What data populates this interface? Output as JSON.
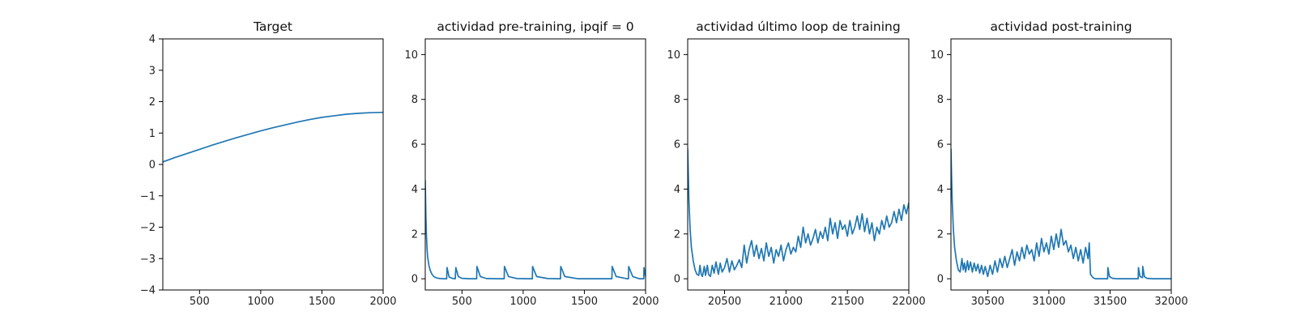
{
  "chart_data": [
    {
      "type": "line",
      "title": "Target",
      "xlim": [
        200,
        2000
      ],
      "ylim": [
        -4,
        4
      ],
      "xticks": [
        500,
        1000,
        1500,
        2000
      ],
      "yticks": [
        -4,
        -3,
        -2,
        -1,
        0,
        1,
        2,
        3,
        4
      ],
      "xticklabels": [
        "500",
        "1000",
        "1500",
        "2000"
      ],
      "yticklabels": [
        "−4",
        "−3",
        "−2",
        "−1",
        "0",
        "1",
        "2",
        "3",
        "4"
      ],
      "line_color": "#1f77b4",
      "series": [
        {
          "x": [
            200,
            300,
            400,
            500,
            600,
            700,
            800,
            900,
            1000,
            1100,
            1200,
            1300,
            1400,
            1500,
            1600,
            1700,
            1800,
            1900,
            2000
          ],
          "y": [
            0.08,
            0.22,
            0.35,
            0.48,
            0.61,
            0.73,
            0.85,
            0.96,
            1.07,
            1.17,
            1.26,
            1.35,
            1.43,
            1.5,
            1.55,
            1.6,
            1.63,
            1.65,
            1.66
          ]
        }
      ]
    },
    {
      "type": "line",
      "title": "actividad pre-training, ipqif = 0",
      "xlim": [
        200,
        2000
      ],
      "ylim": [
        -0.5,
        10.7
      ],
      "xticks": [
        500,
        1000,
        1500,
        2000
      ],
      "yticks": [
        0,
        2,
        4,
        6,
        8,
        10
      ],
      "xticklabels": [
        "500",
        "1000",
        "1500",
        "2000"
      ],
      "yticklabels": [
        "0",
        "2",
        "4",
        "6",
        "8",
        "10"
      ],
      "line_color": "#1f77b4",
      "series": [
        {
          "x": [
            200,
            205,
            210,
            215,
            220,
            230,
            240,
            255,
            270,
            290,
            320,
            360,
            375,
            378,
            395,
            420,
            445,
            450,
            470,
            500,
            560,
            620,
            622,
            650,
            700,
            800,
            845,
            847,
            880,
            950,
            1050,
            1075,
            1077,
            1110,
            1200,
            1290,
            1305,
            1307,
            1340,
            1450,
            1600,
            1720,
            1725,
            1727,
            1760,
            1850,
            1860,
            1862,
            1895,
            1950,
            1985,
            1987,
            2000
          ],
          "y": [
            4.4,
            2.8,
            1.9,
            1.3,
            0.95,
            0.6,
            0.38,
            0.2,
            0.1,
            0.04,
            0.01,
            0.0,
            0.0,
            0.5,
            0.08,
            0.02,
            0.0,
            0.5,
            0.1,
            0.02,
            0.0,
            0.0,
            0.55,
            0.1,
            0.01,
            0.0,
            0.0,
            0.55,
            0.1,
            0.01,
            0.0,
            0.0,
            0.55,
            0.1,
            0.01,
            0.0,
            0.0,
            0.55,
            0.1,
            0.0,
            0.0,
            0.0,
            0.0,
            0.55,
            0.1,
            0.0,
            0.0,
            0.55,
            0.1,
            0.0,
            0.0,
            0.5,
            0.1
          ]
        }
      ]
    },
    {
      "type": "line",
      "title": "actividad último loop de training",
      "xlim": [
        20200,
        22000
      ],
      "ylim": [
        -0.5,
        10.7
      ],
      "xticks": [
        20500,
        21000,
        21500,
        22000
      ],
      "yticks": [
        0,
        2,
        4,
        6,
        8,
        10
      ],
      "xticklabels": [
        "20500",
        "21000",
        "21500",
        "22000"
      ],
      "yticklabels": [
        "0",
        "2",
        "4",
        "6",
        "8",
        "10"
      ],
      "line_color": "#1f77b4",
      "series": [
        {
          "x": [
            20200,
            20210,
            20220,
            20230,
            20245,
            20260,
            20275,
            20290,
            20300,
            20310,
            20320,
            20335,
            20345,
            20360,
            20370,
            20385,
            20400,
            20415,
            20430,
            20450,
            20465,
            20480,
            20500,
            20520,
            20540,
            20560,
            20580,
            20600,
            20620,
            20640,
            20660,
            20680,
            20700,
            20720,
            20740,
            20760,
            20780,
            20800,
            20820,
            20840,
            20860,
            20880,
            20900,
            20920,
            20940,
            20960,
            20980,
            21000,
            21020,
            21040,
            21060,
            21080,
            21100,
            21120,
            21140,
            21160,
            21180,
            21200,
            21220,
            21240,
            21260,
            21280,
            21300,
            21320,
            21340,
            21360,
            21380,
            21400,
            21420,
            21440,
            21460,
            21480,
            21500,
            21520,
            21540,
            21560,
            21580,
            21600,
            21620,
            21640,
            21660,
            21680,
            21700,
            21720,
            21740,
            21760,
            21780,
            21800,
            21820,
            21840,
            21860,
            21880,
            21900,
            21920,
            21940,
            21960,
            21980,
            22000
          ],
          "y": [
            5.8,
            3.5,
            2.2,
            1.4,
            0.8,
            0.4,
            0.2,
            0.15,
            0.6,
            0.2,
            0.1,
            0.55,
            0.15,
            0.6,
            0.2,
            0.1,
            0.6,
            0.25,
            0.75,
            0.2,
            0.7,
            0.3,
            0.5,
            0.9,
            0.3,
            0.8,
            0.4,
            0.6,
            0.85,
            0.5,
            1.5,
            0.7,
            1.3,
            1.7,
            1.0,
            1.5,
            0.9,
            1.35,
            0.8,
            1.6,
            1.0,
            1.4,
            0.7,
            1.3,
            1.0,
            1.5,
            0.8,
            1.3,
            1.6,
            1.1,
            1.4,
            1.2,
            1.9,
            1.4,
            2.3,
            1.6,
            2.0,
            1.5,
            1.8,
            2.2,
            1.6,
            2.1,
            1.8,
            2.3,
            1.7,
            2.7,
            2.0,
            2.5,
            1.8,
            2.6,
            2.2,
            2.4,
            1.9,
            2.6,
            2.0,
            2.3,
            2.8,
            2.2,
            2.9,
            2.1,
            2.7,
            2.0,
            2.5,
            1.7,
            2.3,
            2.0,
            2.6,
            2.2,
            2.8,
            2.3,
            2.5,
            3.0,
            2.5,
            3.1,
            2.6,
            3.3,
            2.9,
            3.4
          ]
        }
      ]
    },
    {
      "type": "line",
      "title": "actividad post-training",
      "xlim": [
        30200,
        32000
      ],
      "ylim": [
        -0.5,
        10.7
      ],
      "xticks": [
        30500,
        31000,
        31500,
        32000
      ],
      "yticks": [
        0,
        2,
        4,
        6,
        8,
        10
      ],
      "xticklabels": [
        "30500",
        "31000",
        "31500",
        "32000"
      ],
      "yticklabels": [
        "0",
        "2",
        "4",
        "6",
        "8",
        "10"
      ],
      "line_color": "#1f77b4",
      "series": [
        {
          "x": [
            30200,
            30210,
            30220,
            30230,
            30245,
            30260,
            30275,
            30290,
            30300,
            30310,
            30320,
            30335,
            30345,
            30360,
            30375,
            30390,
            30405,
            30420,
            30435,
            30450,
            30465,
            30480,
            30500,
            30520,
            30540,
            30560,
            30580,
            30600,
            30620,
            30640,
            30660,
            30680,
            30700,
            30720,
            30740,
            30760,
            30780,
            30800,
            30820,
            30840,
            30860,
            30880,
            30900,
            30920,
            30940,
            30960,
            30980,
            31000,
            31020,
            31040,
            31060,
            31080,
            31100,
            31120,
            31140,
            31160,
            31180,
            31200,
            31220,
            31240,
            31260,
            31280,
            31300,
            31320,
            31330,
            31340,
            31360,
            31380,
            31400,
            31450,
            31480,
            31482,
            31495,
            31520,
            31560,
            31600,
            31700,
            31730,
            31732,
            31745,
            31765,
            31767,
            31780,
            31800,
            31850,
            31900,
            31950,
            32000
          ],
          "y": [
            5.8,
            3.5,
            2.2,
            1.4,
            0.8,
            0.4,
            0.3,
            0.9,
            0.4,
            0.7,
            0.3,
            0.8,
            0.4,
            0.75,
            0.3,
            0.7,
            0.35,
            0.65,
            0.25,
            0.6,
            0.2,
            0.55,
            0.1,
            0.6,
            0.2,
            0.8,
            0.3,
            0.9,
            0.5,
            1.0,
            0.5,
            0.9,
            1.3,
            0.6,
            1.2,
            0.8,
            1.4,
            0.9,
            1.5,
            1.1,
            1.3,
            0.8,
            1.6,
            1.0,
            1.8,
            1.2,
            1.6,
            1.1,
            1.9,
            1.3,
            2.0,
            1.4,
            2.2,
            1.5,
            1.7,
            1.2,
            1.5,
            0.9,
            1.4,
            0.8,
            1.3,
            0.7,
            1.4,
            0.9,
            1.6,
            0.2,
            0.05,
            0.0,
            0.0,
            0.0,
            0.0,
            0.5,
            0.1,
            0.02,
            0.0,
            0.0,
            0.0,
            0.0,
            0.5,
            0.1,
            0.05,
            0.55,
            0.1,
            0.02,
            0.0,
            0.0,
            0.0,
            0.0
          ]
        }
      ]
    }
  ]
}
